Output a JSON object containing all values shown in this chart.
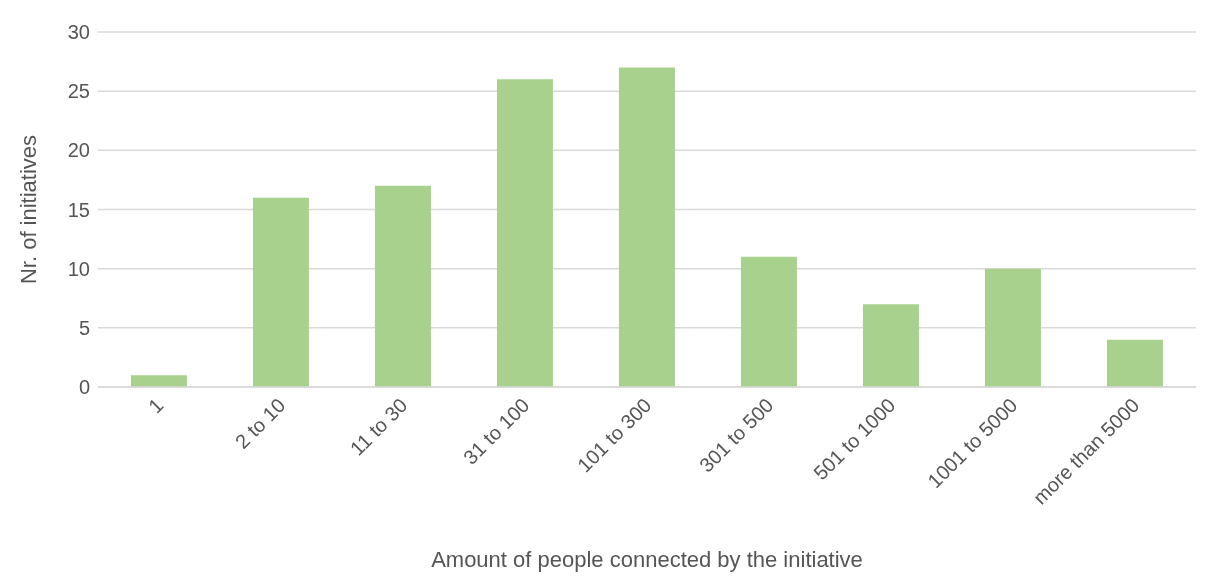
{
  "chart_data": {
    "type": "bar",
    "xlabel": "Amount of people connected by the initiative",
    "ylabel": "Nr. of initiatives",
    "categories": [
      "1",
      "2 to 10",
      "11 to 30",
      "31 to 100",
      "101 to 300",
      "301 to 500",
      "501 to 1000",
      "1001 to 5000",
      "more than 5000"
    ],
    "values": [
      1,
      16,
      17,
      26,
      27,
      11,
      7,
      10,
      4
    ],
    "color": "#a9d18e",
    "ylim": [
      0,
      30
    ],
    "yticks": [
      0,
      5,
      10,
      15,
      20,
      25,
      30
    ],
    "grid": "y",
    "legend": false
  }
}
